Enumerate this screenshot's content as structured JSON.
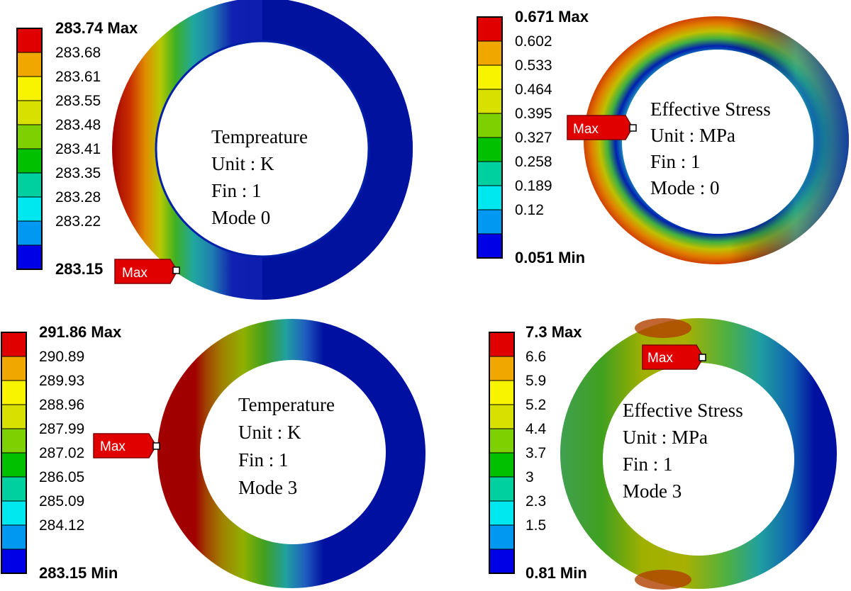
{
  "legend_colors": [
    "#0000e6",
    "#0098f0",
    "#00e8ef",
    "#00d0a0",
    "#00c000",
    "#7fd000",
    "#d8e000",
    "#f8f400",
    "#f0a800",
    "#e00000"
  ],
  "panels": [
    {
      "id": "temperature-mode-0",
      "legend": {
        "max_label": "283.74 Max",
        "min_label": "283.15",
        "ticks": [
          "283.68",
          "283.61",
          "283.55",
          "283.48",
          "283.41",
          "283.35",
          "283.28",
          "283.22"
        ]
      },
      "text_lines": [
        "Tempreature",
        "Unit : K",
        "Fin : 1",
        "Mode 0"
      ],
      "probe_label": "Max"
    },
    {
      "id": "stress-mode-0",
      "legend": {
        "max_label": "0.671 Max",
        "min_label": "0.051 Min",
        "ticks": [
          "0.602",
          "0.533",
          "0.464",
          "0.395",
          "0.327",
          "0.258",
          "0.189",
          "0.12"
        ]
      },
      "text_lines": [
        "Effective Stress",
        "Unit : MPa",
        "Fin : 1",
        "Mode : 0"
      ],
      "probe_label": "Max"
    },
    {
      "id": "temperature-mode-3",
      "legend": {
        "max_label": "291.86 Max",
        "min_label": "283.15 Min",
        "ticks": [
          "290.89",
          "289.93",
          "288.96",
          "287.99",
          "287.02",
          "286.05",
          "285.09",
          "284.12"
        ]
      },
      "text_lines": [
        "Temperature",
        "Unit : K",
        "Fin : 1",
        "Mode 3"
      ],
      "probe_label": "Max"
    },
    {
      "id": "stress-mode-3",
      "legend": {
        "max_label": "7.3 Max",
        "min_label": "0.81 Min",
        "ticks": [
          "6.6",
          "5.9",
          "5.2",
          "4.4",
          "3.7",
          "3",
          "2.3",
          "1.5"
        ]
      },
      "text_lines": [
        "Effective Stress",
        "Unit : MPa",
        "Fin : 1",
        "Mode 3"
      ],
      "probe_label": "Max"
    }
  ]
}
